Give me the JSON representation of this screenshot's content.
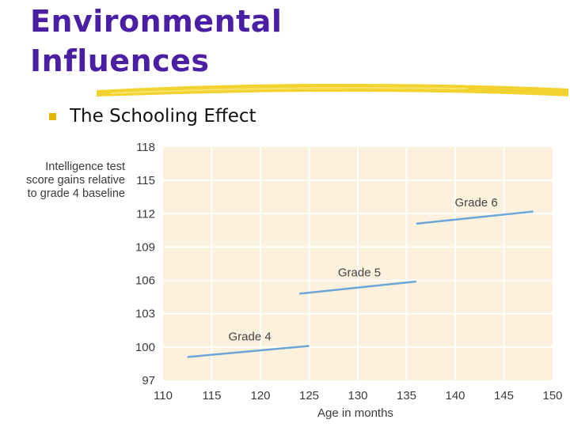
{
  "slide": {
    "title_line1": "Environmental",
    "title_line2": "Influences",
    "bullet": "The Schooling Effect"
  },
  "colors": {
    "title": "#4b1fa3",
    "bullet": "#e2b600",
    "underline": "#f2d22e",
    "plot_background": "#fbf1dd",
    "grid": "#ffffff",
    "line": "#6aa6d6"
  },
  "chart_data": {
    "type": "line",
    "ylabel": "Intelligence test\nscore gains relative\nto grade 4 baseline",
    "xlabel": "Age in months",
    "xlim": [
      110,
      150
    ],
    "ylim": [
      97,
      118
    ],
    "x_ticks": [
      110,
      115,
      120,
      125,
      130,
      135,
      140,
      145,
      150
    ],
    "y_ticks": [
      97,
      100,
      103,
      106,
      109,
      112,
      115,
      118
    ],
    "grid": true,
    "series": [
      {
        "name": "Grade 4",
        "x": [
          112.5,
          125
        ],
        "y": [
          99.1,
          100.1
        ]
      },
      {
        "name": "Grade 5",
        "x": [
          124,
          136
        ],
        "y": [
          104.8,
          105.9
        ]
      },
      {
        "name": "Grade 6",
        "x": [
          136,
          148
        ],
        "y": [
          111.1,
          112.2
        ]
      }
    ]
  }
}
